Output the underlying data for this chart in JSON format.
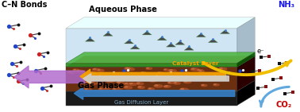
{
  "title": "",
  "figsize": [
    3.78,
    1.41
  ],
  "dpi": 100,
  "bg_color": "#ffffff",
  "label_cn_bonds": "C–N Bonds",
  "label_aqueous": "Aqueous Phase",
  "label_gas": "Gas Phase",
  "label_nh3": "NH₃",
  "label_co2": "CO₂",
  "label_electron": "e⁻",
  "label_catalyst": "Catalyst Layer",
  "label_gdl": "Gas Diffusion Layer"
}
